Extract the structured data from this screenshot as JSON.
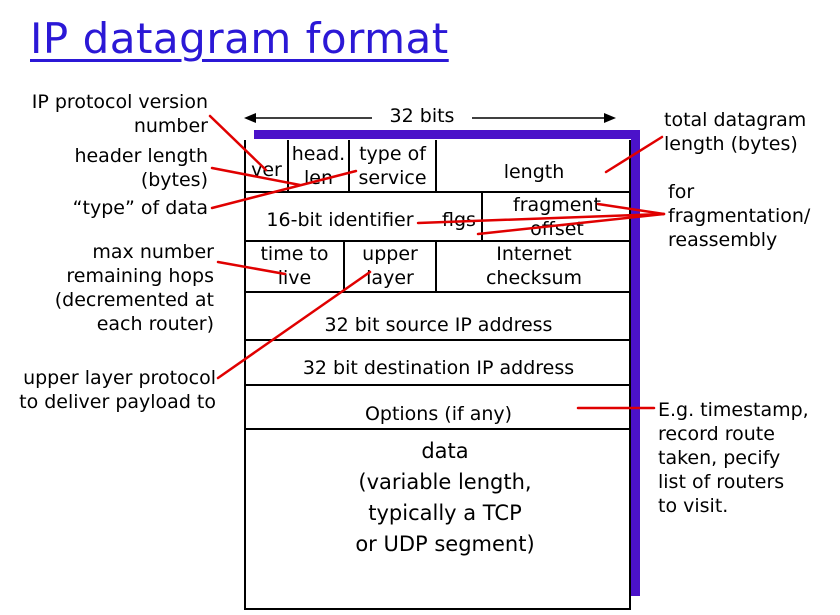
{
  "title": "IP datagram format",
  "width_label": "32 bits",
  "fields": {
    "ver": "ver",
    "head_len_1": "head.",
    "head_len_2": "len",
    "tos_1": "type of",
    "tos_2": "service",
    "length": "length",
    "identifier": "16-bit identifier",
    "flags": "flgs",
    "frag_1": "fragment",
    "frag_2": "offset",
    "ttl_1": "time to",
    "ttl_2": "live",
    "upper_1": "upper",
    "upper_2": "layer",
    "checksum_1": "Internet",
    "checksum_2": "checksum",
    "src": "32 bit source IP address",
    "dst": "32 bit destination IP address",
    "options": "Options (if any)",
    "data_1": "data",
    "data_2": "(variable length,",
    "data_3": "typically a TCP",
    "data_4": "or UDP segment)"
  },
  "annotations": {
    "version_1": "IP protocol version",
    "version_2": "number",
    "hlen_1": "header length",
    "hlen_2": "(bytes)",
    "type_data": "“type” of data",
    "hops_1": "max number",
    "hops_2": "remaining hops",
    "hops_3": "(decremented at",
    "hops_4": "each router)",
    "upper_1": "upper layer protocol",
    "upper_2": "to deliver payload to",
    "total_1": "total datagram",
    "total_2": "length (bytes)",
    "frag_1": "for",
    "frag_2": "fragmentation/",
    "frag_3": "reassembly",
    "opts_1": "E.g. timestamp,",
    "opts_2": "record route",
    "opts_3": "taken, pecify",
    "opts_4": "list of routers",
    "opts_5": "to visit."
  },
  "colors": {
    "title": "#2b18d6",
    "shadow": "#4b12c9",
    "pointer": "#e00000"
  }
}
